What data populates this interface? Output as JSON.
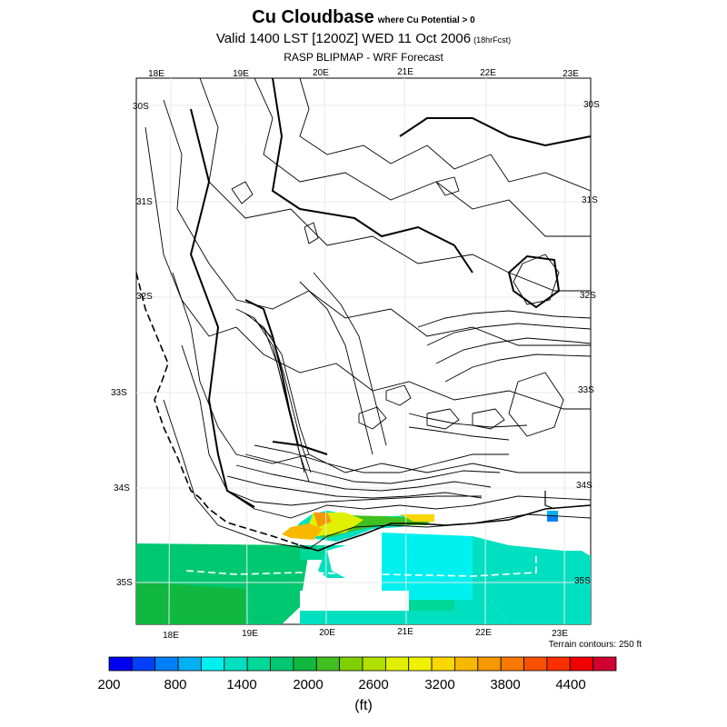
{
  "titles": {
    "main": "Cu Cloudbase",
    "main_sub": "where Cu Potential > 0",
    "valid": "Valid 1400 LST [1200Z] WED 11 Oct 2006",
    "forecast_note": "(18hrFcst)",
    "source": "RASP BLIPMAP - WRF Forecast"
  },
  "map": {
    "lon_top": [
      "18E",
      "19E",
      "20E",
      "21E",
      "22E",
      "23E"
    ],
    "lon_bottom": [
      "18E",
      "19E",
      "20E",
      "21E",
      "22E",
      "23E"
    ],
    "lat_left": [
      "30S",
      "31S",
      "32S",
      "33S",
      "34S",
      "35S"
    ],
    "lat_right": [
      "30S",
      "31S",
      "32S",
      "33S",
      "34S",
      "35S"
    ],
    "terrain_note": "Terrain contours: 250 ft"
  },
  "colorbar": {
    "colors": [
      "#0000f0",
      "#0040f8",
      "#0080f8",
      "#00b0f0",
      "#00f0f0",
      "#00e0c0",
      "#00d898",
      "#00c870",
      "#10b840",
      "#40c020",
      "#80d000",
      "#b0e000",
      "#e0f000",
      "#f0f000",
      "#f8d800",
      "#f8b800",
      "#f89800",
      "#f87800",
      "#f85000",
      "#f83000",
      "#f00000",
      "#d00030"
    ],
    "labels": [
      "200",
      "800",
      "1400",
      "2000",
      "2600",
      "3200",
      "3800",
      "4400"
    ],
    "unit": "(ft)"
  }
}
